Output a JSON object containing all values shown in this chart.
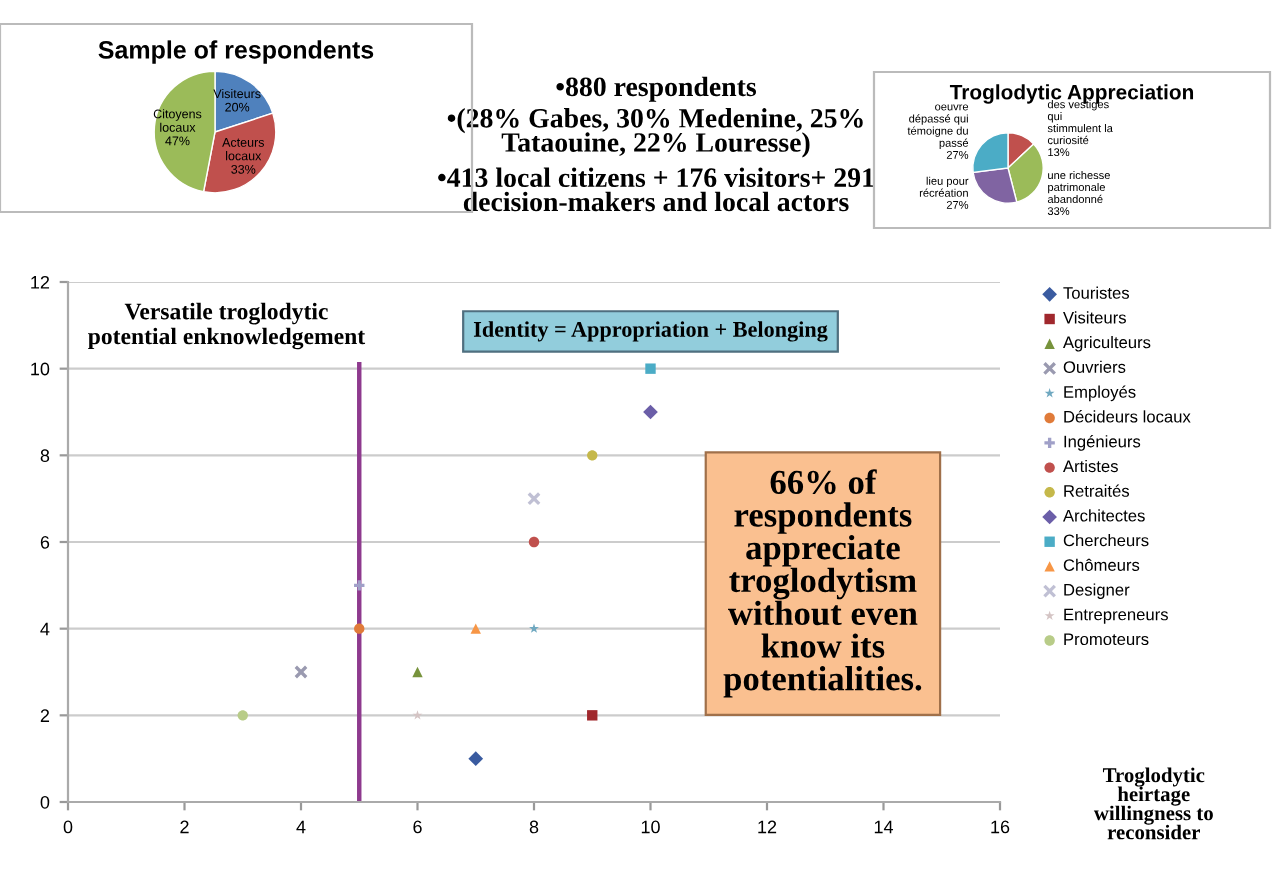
{
  "chart_data": [
    {
      "type": "pie",
      "title": "Sample of respondents",
      "categories": [
        "Visiteurs",
        "Acteurs\nlocaux",
        "Citoyens\nlocaux"
      ],
      "values": [
        20,
        33,
        47
      ],
      "value_labels": [
        "20%",
        "33%",
        "47%"
      ],
      "colors": [
        "#4f81bd",
        "#c0504d",
        "#9bbb59"
      ]
    },
    {
      "type": "other",
      "annotations": [
        "•880 respondents",
        "•(28% Gabes, 30% Medenine, 25%\nTataouine, 22% Louresse)",
        "•413 local citizens + 176 visitors+ 291\ndecision-makers and local actors"
      ]
    },
    {
      "type": "pie",
      "title": "Troglodytic Appreciation",
      "categories": [
        "des vestiges\nqui\nstimmulent la\ncuriosité",
        "une richesse\npatrimonale\nabandonné",
        "lieu pour\nrécréation",
        "oeuvre\ndépassé qui\ntémoigne du\npassé"
      ],
      "values": [
        13,
        33,
        27,
        27
      ],
      "value_labels": [
        "13%",
        "33%",
        "27%",
        "27%"
      ],
      "colors": [
        "#c0504d",
        "#9bbb59",
        "#8064a2",
        "#4bacc6"
      ]
    },
    {
      "type": "scatter",
      "xlabel": "Troglodytic\nheirtage\nwillingness to\nreconsider",
      "xlim": [
        0,
        16
      ],
      "xticks": [
        0,
        2,
        4,
        6,
        8,
        10,
        12,
        14,
        16
      ],
      "ylim": [
        0,
        12
      ],
      "yticks": [
        0,
        2,
        4,
        6,
        8,
        10,
        12
      ],
      "grid": "y",
      "legend": "right",
      "ref_lines": [
        {
          "axis": "x",
          "value": 5,
          "color": "#8e3a8e"
        }
      ],
      "annotations": [
        "Versatile troglodytic\npotential enknowledgement",
        "Identity = Appropriation + Belonging",
        "66% of\nrespondents\nappreciate\ntroglodytism\nwithout even\nknow its\npotentialities."
      ],
      "series": [
        {
          "name": "Touristes",
          "color": "#3a5ba0",
          "marker": "diamond",
          "x": [
            7
          ],
          "values": [
            1
          ]
        },
        {
          "name": "Visiteurs",
          "color": "#a0282d",
          "marker": "square",
          "x": [
            9
          ],
          "values": [
            2
          ]
        },
        {
          "name": "Agriculteurs",
          "color": "#77933c",
          "marker": "triangle",
          "x": [
            6
          ],
          "values": [
            3
          ]
        },
        {
          "name": "Ouvriers",
          "color": "#9a9ab0",
          "marker": "cross",
          "x": [
            4
          ],
          "values": [
            3
          ]
        },
        {
          "name": "Employés",
          "color": "#6fa8c0",
          "marker": "star",
          "x": [
            8
          ],
          "values": [
            4
          ]
        },
        {
          "name": "Décideurs locaux",
          "color": "#e07b39",
          "marker": "circle",
          "x": [
            5
          ],
          "values": [
            4
          ]
        },
        {
          "name": "Ingénieurs",
          "color": "#a0a0c8",
          "marker": "plus",
          "x": [
            5
          ],
          "values": [
            5
          ]
        },
        {
          "name": "Artistes",
          "color": "#c0504d",
          "x": [
            8
          ],
          "values": [
            6
          ]
        },
        {
          "name": "Retraités",
          "color": "#c5b84a",
          "x": [
            9
          ],
          "values": [
            8
          ]
        },
        {
          "name": "Architectes",
          "color": "#6b5ea8",
          "marker": "diamond",
          "x": [
            10
          ],
          "values": [
            9
          ]
        },
        {
          "name": "Chercheurs",
          "color": "#4bacc6",
          "marker": "square",
          "x": [
            10
          ],
          "values": [
            10
          ]
        },
        {
          "name": "Chômeurs",
          "color": "#f79646",
          "marker": "triangle",
          "x": [
            7
          ],
          "values": [
            4
          ]
        },
        {
          "name": "Designer",
          "color": "#c0c0d4",
          "marker": "cross",
          "x": [
            8
          ],
          "values": [
            7
          ]
        },
        {
          "name": "Entrepreneurs",
          "color": "#d4c4c4",
          "marker": "star",
          "x": [
            6
          ],
          "values": [
            2
          ]
        },
        {
          "name": "Promoteurs",
          "color": "#b8cc88",
          "marker": "circle",
          "x": [
            3
          ],
          "values": [
            2
          ]
        }
      ]
    }
  ]
}
